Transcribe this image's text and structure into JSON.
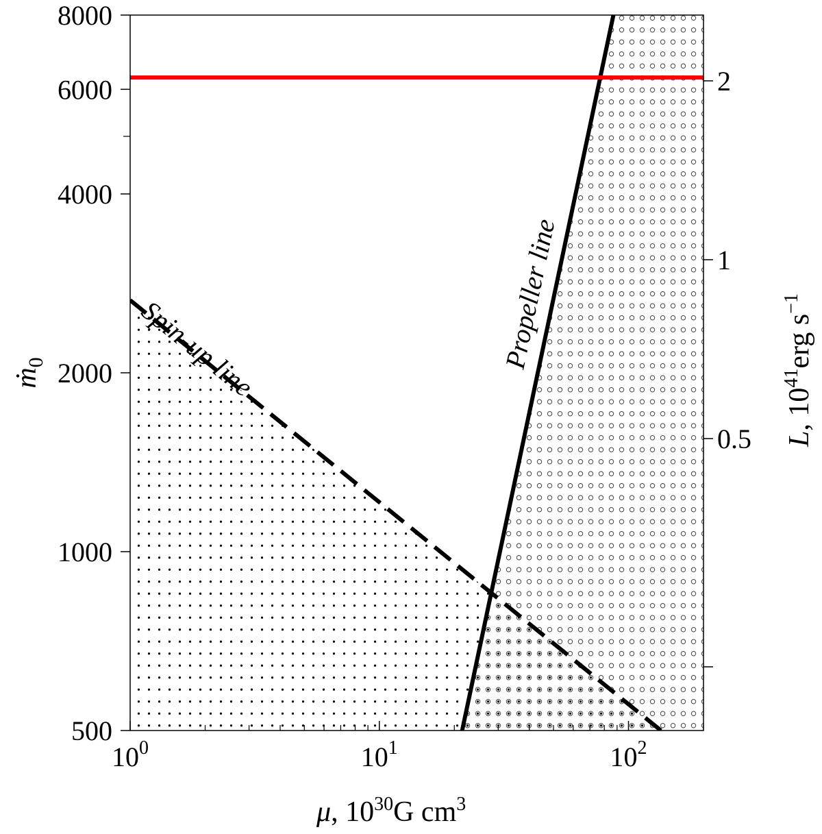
{
  "chart_data": {
    "type": "line",
    "title": "",
    "x_axis": {
      "label_symbol": "μ",
      "label_rest": ", 10",
      "label_sup": "30",
      "label_unit": "G cm",
      "label_unit_sup": "3",
      "scale": "log",
      "range": [
        1,
        200
      ],
      "major_ticks": [
        {
          "value": 1,
          "base": "10",
          "exp": "0"
        },
        {
          "value": 10,
          "base": "10",
          "exp": "1"
        },
        {
          "value": 100,
          "base": "10",
          "exp": "2"
        }
      ]
    },
    "y_axis_left": {
      "label_symbol": "ṁ",
      "label_sub": "0",
      "scale": "log",
      "range": [
        500,
        8000
      ],
      "major_ticks": [
        "500",
        "1000",
        "2000",
        "4000",
        "6000",
        "8000"
      ],
      "tick_values": [
        500,
        1000,
        2000,
        4000,
        6000,
        8000
      ],
      "minor_ticks": [
        5000
      ]
    },
    "y_axis_right": {
      "label_symbol": "L",
      "label_rest": ", 10",
      "label_sup": "41",
      "label_unit": "erg s",
      "label_unit_sup": "−1",
      "scale": "log",
      "ticks": [
        {
          "label": "2",
          "mdot": 6200
        },
        {
          "label": "1",
          "mdot": 3100
        },
        {
          "label": "0.5",
          "mdot": 1550
        },
        {
          "label": "",
          "mdot": 640
        }
      ]
    },
    "series": [
      {
        "id": "propeller",
        "name": "Propeller line",
        "style": "solid",
        "color": "#000000",
        "x": [
          21.5,
          87
        ],
        "y": [
          500,
          8000
        ]
      },
      {
        "id": "spinup",
        "name": "Spin-up line",
        "style": "dashed",
        "color": "#000000",
        "x": [
          1,
          135
        ],
        "y": [
          2650,
          500
        ]
      },
      {
        "id": "limit",
        "name": "",
        "style": "solid",
        "color": "#ff0000",
        "x": [
          1,
          200
        ],
        "y": [
          6280,
          6280
        ]
      }
    ],
    "regions": [
      {
        "id": "spinup-region",
        "pattern": "dots",
        "description_hidden": true
      },
      {
        "id": "propeller-region",
        "pattern": "circles",
        "description_hidden": true
      }
    ],
    "grid": false,
    "legend": "none"
  }
}
